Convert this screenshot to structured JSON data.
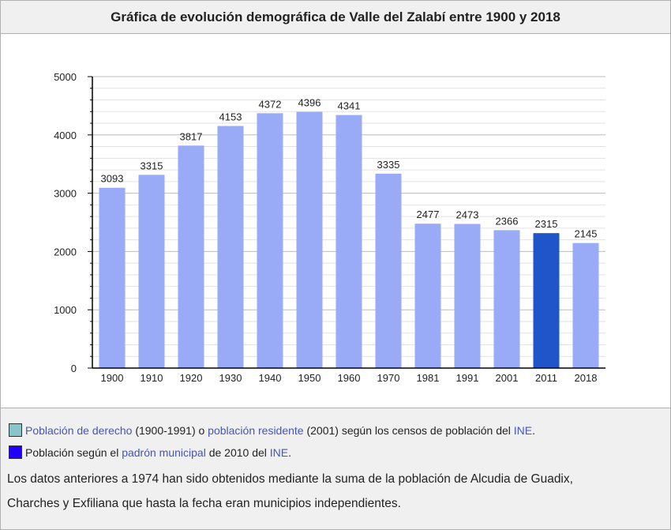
{
  "chart_data": {
    "type": "bar",
    "title": "Gráfica de evolución demográfica de Valle del Zalabí entre 1900 y 2018",
    "categories": [
      "1900",
      "1910",
      "1920",
      "1930",
      "1940",
      "1950",
      "1960",
      "1970",
      "1981",
      "1991",
      "2001",
      "2011",
      "2018"
    ],
    "values": [
      3093,
      3315,
      3817,
      4153,
      4372,
      4396,
      4341,
      3335,
      2477,
      2473,
      2366,
      2315,
      2145
    ],
    "bar_colors": [
      "#99aaf7",
      "#99aaf7",
      "#99aaf7",
      "#99aaf7",
      "#99aaf7",
      "#99aaf7",
      "#99aaf7",
      "#99aaf7",
      "#99aaf7",
      "#99aaf7",
      "#99aaf7",
      "#1f55c9",
      "#99aaf7"
    ],
    "yticks": [
      0,
      1000,
      2000,
      3000,
      4000,
      5000
    ],
    "ylim": [
      0,
      5000
    ],
    "grid": true,
    "xlabel": "",
    "ylabel": ""
  },
  "legend": {
    "item1": {
      "color": "#88c4cc",
      "link1": "Población de derecho",
      "t1": " (1900-1991) o ",
      "link2": "población residente",
      "t2": " (2001) según los censos de población del ",
      "link3": "INE",
      "t3": "."
    },
    "item2": {
      "color": "#2200ff",
      "t1": "Población según el ",
      "link1": "padrón municipal",
      "t2": " de 2010 del ",
      "link2": "INE",
      "t3": "."
    }
  },
  "note": {
    "line1": "Los datos anteriores a 1974 han sido obtenidos mediante la suma de la población de Alcudia de Guadix,",
    "line2": "Charches y Exfiliana que hasta la fecha eran municipios independientes."
  }
}
